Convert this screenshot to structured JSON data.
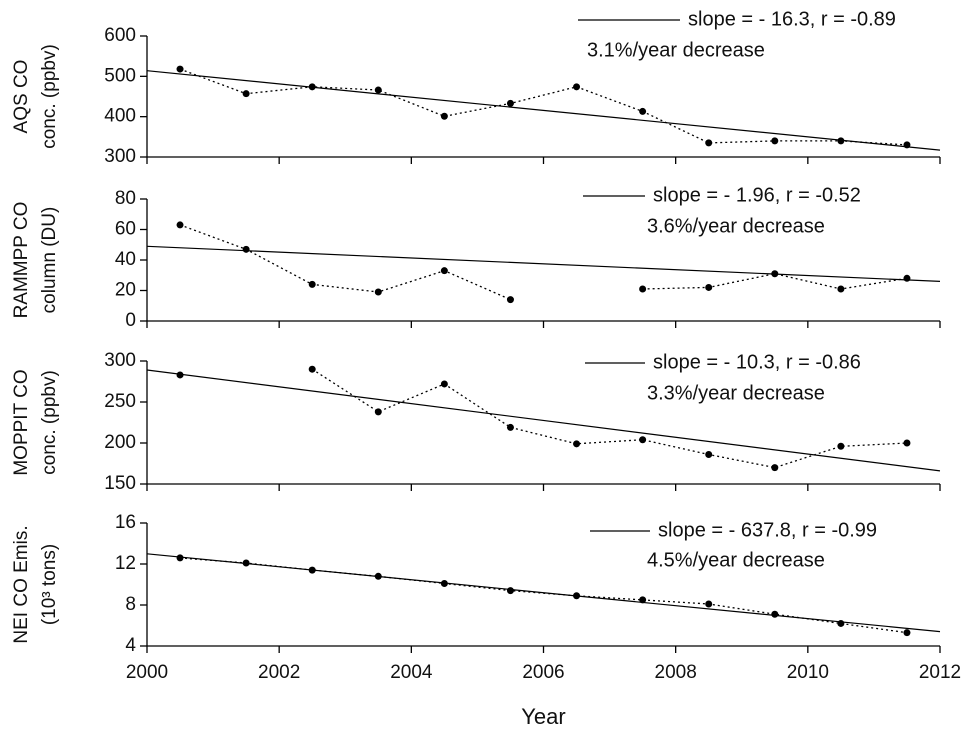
{
  "chart_data": [
    {
      "type": "line",
      "ylabel": [
        "AQS CO",
        "conc. (ppbv)"
      ],
      "ylim": [
        300,
        600
      ],
      "yticks": [
        300,
        400,
        500,
        600
      ],
      "xlim": [
        2000,
        2012
      ],
      "xticks": [
        2000,
        2002,
        2004,
        2006,
        2008,
        2010,
        2012
      ],
      "annotation": "3.1%/year decrease",
      "series": [
        {
          "style": "dotted",
          "color": "#000000",
          "x": [
            2000.5,
            2001.5,
            2002.5,
            2003.5,
            2004.5,
            2005.5,
            2006.5,
            2007.5,
            2008.5,
            2009.5,
            2010.5,
            2011.5
          ],
          "values": [
            518,
            457,
            474,
            466,
            401,
            433,
            474,
            413,
            335,
            340,
            340,
            330
          ]
        },
        {
          "style": "solid",
          "color": "#000000",
          "name": "slope = - 16.3, r = -0.89",
          "x": [
            2000,
            2012
          ],
          "values": [
            514,
            317
          ]
        }
      ]
    },
    {
      "type": "line",
      "ylabel": [
        "RAMMPP CO",
        "column (DU)"
      ],
      "ylim": [
        0,
        80
      ],
      "yticks": [
        0,
        20,
        40,
        60,
        80
      ],
      "xlim": [
        2000,
        2012
      ],
      "xticks": [
        2000,
        2002,
        2004,
        2006,
        2008,
        2010,
        2012
      ],
      "annotation": "3.6%/year decrease",
      "series": [
        {
          "style": "dotted",
          "color": "#000000",
          "x": [
            2000.5,
            2001.5,
            2002.5,
            2003.5,
            2004.5,
            2005.5,
            2006.5,
            2007.5,
            2008.5,
            2009.5,
            2010.5,
            2011.5
          ],
          "values": [
            63,
            47,
            24,
            19,
            33,
            14,
            null,
            21,
            22,
            31,
            21,
            28
          ]
        },
        {
          "style": "solid",
          "color": "#000000",
          "name": "slope = - 1.96, r = -0.52",
          "x": [
            2000,
            2012
          ],
          "values": [
            49,
            26
          ]
        }
      ]
    },
    {
      "type": "line",
      "ylabel": [
        "MOPPIT CO",
        "conc. (ppbv)"
      ],
      "ylim": [
        150,
        300
      ],
      "yticks": [
        150,
        200,
        250,
        300
      ],
      "xlim": [
        2000,
        2012
      ],
      "xticks": [
        2000,
        2002,
        2004,
        2006,
        2008,
        2010,
        2012
      ],
      "annotation": "3.3%/year decrease",
      "series": [
        {
          "style": "dotted",
          "color": "#000000",
          "x": [
            2000.5,
            2001.5,
            2002.5,
            2003.5,
            2004.5,
            2005.5,
            2006.5,
            2007.5,
            2008.5,
            2009.5,
            2010.5,
            2011.5
          ],
          "values": [
            283,
            null,
            290,
            238,
            272,
            219,
            199,
            204,
            186,
            170,
            196,
            200
          ]
        },
        {
          "style": "solid",
          "color": "#000000",
          "name": "slope = - 10.3, r = -0.86",
          "x": [
            2000,
            2012
          ],
          "values": [
            289,
            166
          ]
        }
      ]
    },
    {
      "type": "line",
      "ylabel": [
        "NEI CO Emis.",
        "(10³ tons)"
      ],
      "ylim": [
        4,
        16
      ],
      "yticks": [
        4,
        8,
        12,
        16
      ],
      "xlim": [
        2000,
        2012
      ],
      "xticks": [
        2000,
        2002,
        2004,
        2006,
        2008,
        2010,
        2012
      ],
      "xlabel": "Year",
      "annotation": "4.5%/year decrease",
      "series": [
        {
          "style": "dotted",
          "color": "#000000",
          "x": [
            2000.5,
            2001.5,
            2002.5,
            2003.5,
            2004.5,
            2005.5,
            2006.5,
            2007.5,
            2008.5,
            2009.5,
            2010.5,
            2011.5
          ],
          "values": [
            12.6,
            12.1,
            11.4,
            10.8,
            10.1,
            9.4,
            8.9,
            8.5,
            8.1,
            7.1,
            6.2,
            5.3
          ]
        },
        {
          "style": "solid",
          "color": "#000000",
          "name": "slope = - 637.8, r = -0.99",
          "x": [
            2000,
            2012
          ],
          "values": [
            13.0,
            5.4
          ]
        }
      ]
    }
  ]
}
